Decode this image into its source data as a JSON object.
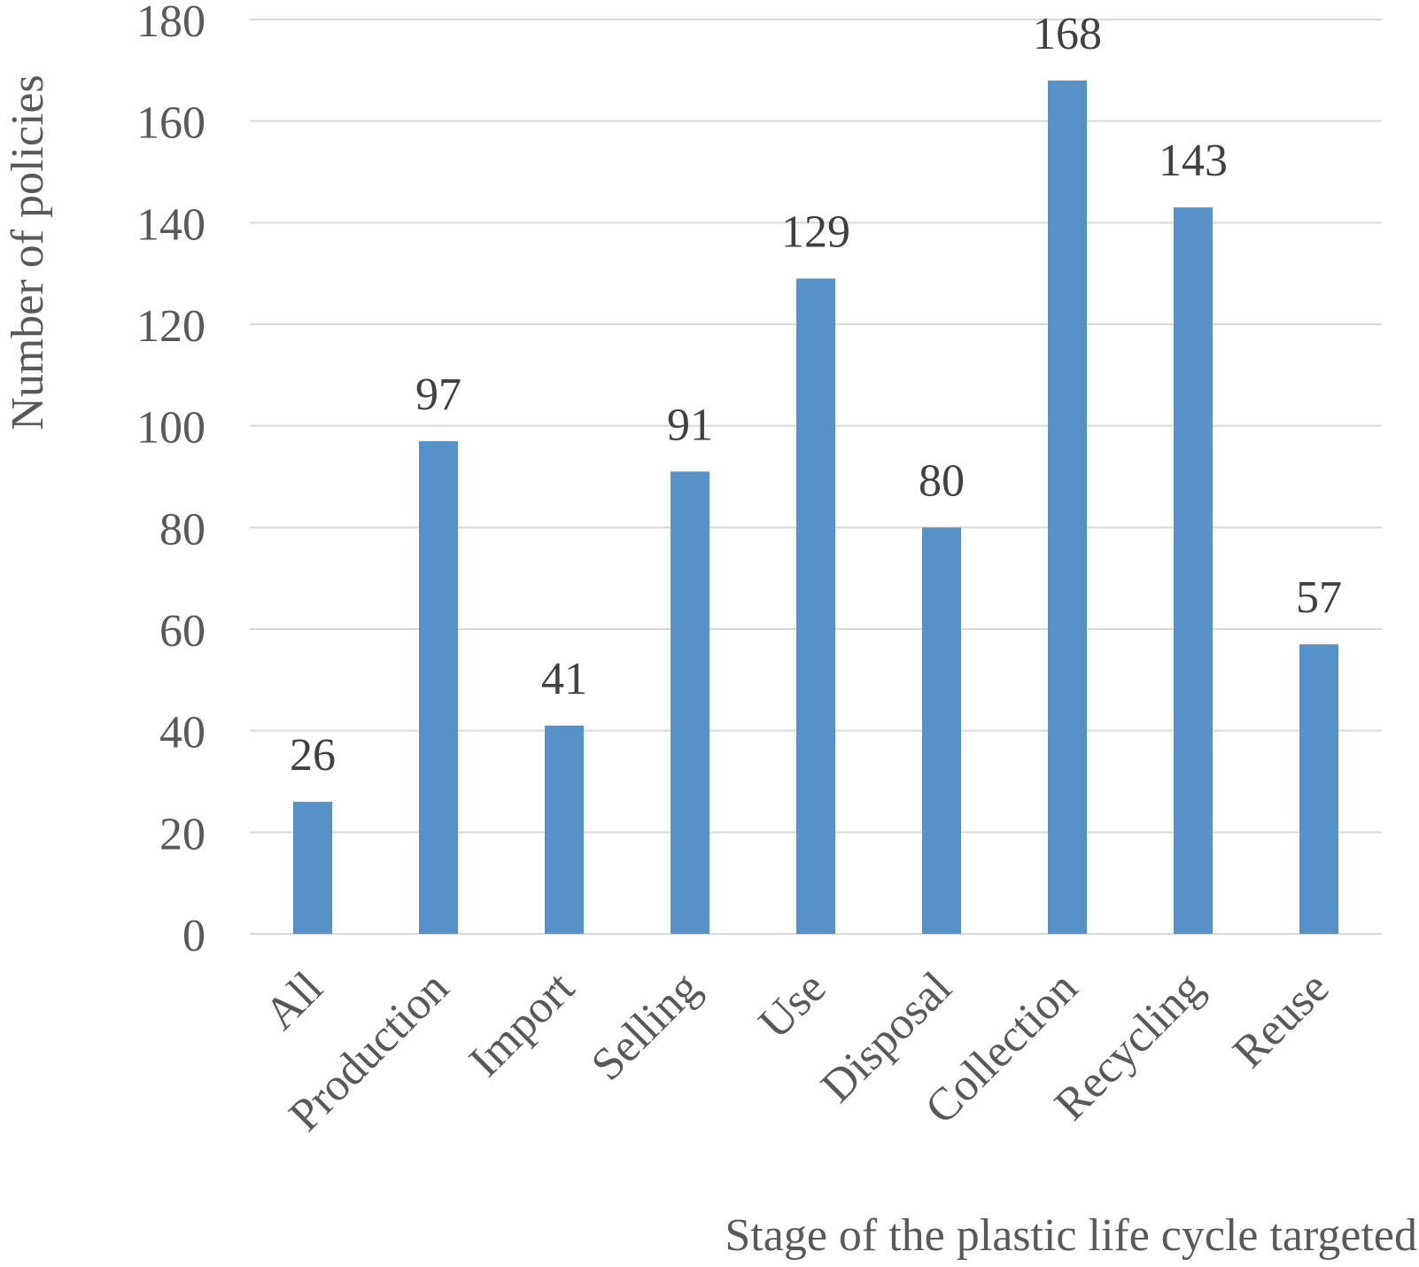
{
  "chart_data": {
    "type": "bar",
    "title": "",
    "xlabel": "Stage of the plastic life cycle targeted",
    "ylabel": "Number of policies",
    "categories": [
      "All",
      "Production",
      "Import",
      "Selling",
      "Use",
      "Disposal",
      "Collection",
      "Recycling",
      "Reuse"
    ],
    "values": [
      26,
      97,
      41,
      91,
      129,
      80,
      168,
      143,
      57
    ],
    "ylim": [
      0,
      180
    ],
    "yticks": [
      0,
      20,
      40,
      60,
      80,
      100,
      120,
      140,
      160,
      180
    ],
    "grid": true,
    "legend": "none",
    "data_labels": true,
    "colors": {
      "bar": "#5692c8",
      "grid": "#d9d9d9",
      "text": "#595959",
      "label": "#404040"
    }
  }
}
